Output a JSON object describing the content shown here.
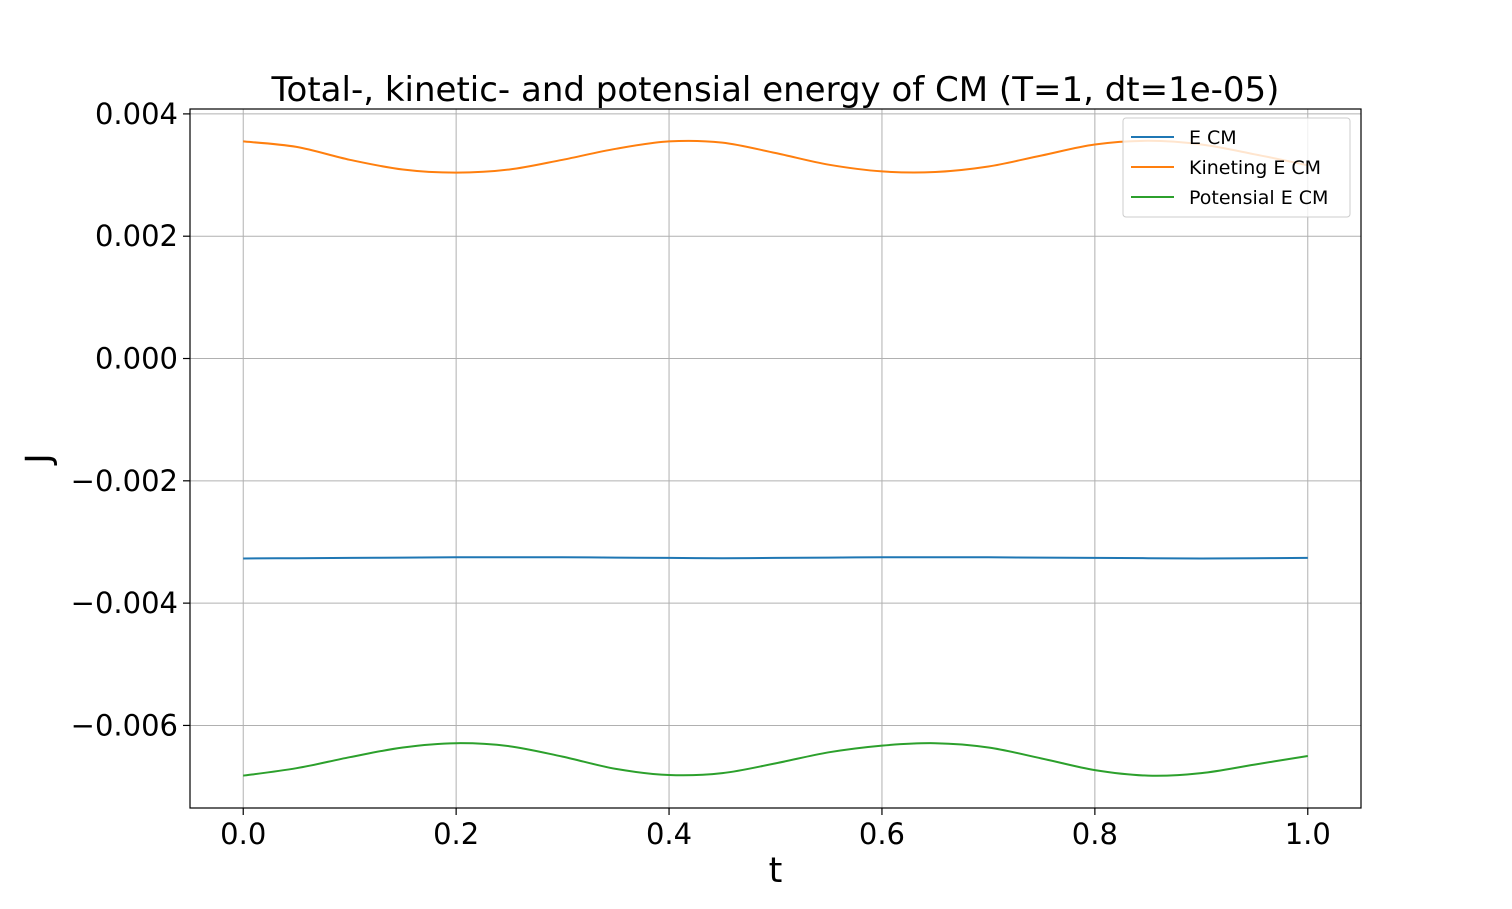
{
  "chart_data": {
    "type": "line",
    "title": "Total-, kinetic- and potensial energy of CM (T=1, dt=1e-05)",
    "xlabel": "t",
    "ylabel": "J",
    "xlim": [
      -0.05,
      1.05
    ],
    "ylim": [
      -0.00735,
      0.00408
    ],
    "xticks": [
      0.0,
      0.2,
      0.4,
      0.6,
      0.8,
      1.0
    ],
    "xtick_labels": [
      "0.0",
      "0.2",
      "0.4",
      "0.6",
      "0.8",
      "1.0"
    ],
    "yticks": [
      0.004,
      0.002,
      0.0,
      -0.002,
      -0.004,
      -0.006
    ],
    "ytick_labels": [
      "0.004",
      "0.002",
      "0.000",
      "−0.002",
      "−0.004",
      "−0.006"
    ],
    "grid": true,
    "legend_position": "top-right",
    "x": [
      0.0,
      0.05,
      0.1,
      0.15,
      0.2,
      0.25,
      0.3,
      0.35,
      0.4,
      0.45,
      0.5,
      0.55,
      0.6,
      0.65,
      0.7,
      0.75,
      0.8,
      0.85,
      0.9,
      0.95,
      1.0
    ],
    "series": [
      {
        "name": "E CM",
        "color": "#1f77b4",
        "values": [
          -0.00327,
          -0.003265,
          -0.00326,
          -0.003255,
          -0.00325,
          -0.00325,
          -0.00325,
          -0.003255,
          -0.00326,
          -0.003265,
          -0.00326,
          -0.003255,
          -0.00325,
          -0.00325,
          -0.00325,
          -0.003255,
          -0.00326,
          -0.003265,
          -0.00327,
          -0.003265,
          -0.00326
        ]
      },
      {
        "name": "Kineting E CM",
        "color": "#ff7f0e",
        "values": [
          0.00355,
          0.00346,
          0.00325,
          0.00309,
          0.00304,
          0.00309,
          0.00325,
          0.00343,
          0.00355,
          0.00353,
          0.00336,
          0.00317,
          0.00306,
          0.00305,
          0.00314,
          0.00332,
          0.0035,
          0.00356,
          0.0035,
          0.00334,
          0.00316
        ]
      },
      {
        "name": "Potensial E CM",
        "color": "#2ca02c",
        "values": [
          -0.00682,
          -0.0067,
          -0.00652,
          -0.00636,
          -0.00629,
          -0.00634,
          -0.00651,
          -0.00671,
          -0.00681,
          -0.00678,
          -0.00662,
          -0.00644,
          -0.00633,
          -0.00629,
          -0.00636,
          -0.00654,
          -0.00673,
          -0.00682,
          -0.00678,
          -0.00664,
          -0.0065
        ]
      }
    ]
  }
}
